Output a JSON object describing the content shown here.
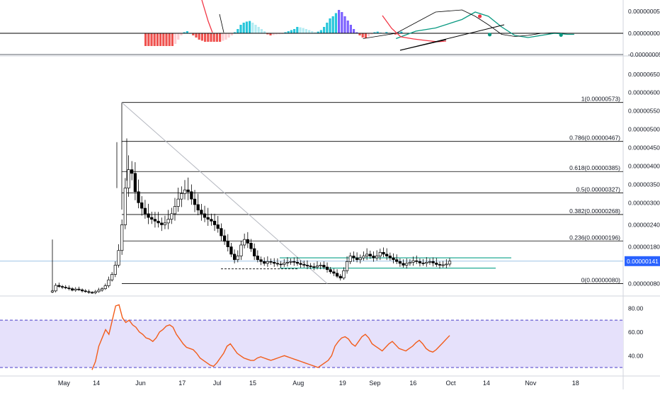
{
  "colors": {
    "bull": "#ffffff",
    "bear": "#000000",
    "fib": "#000000",
    "diagonal": "#b2b5be",
    "price_line": "#9ec4e6",
    "price_badge": "#2962ff",
    "channel": "#22ab94",
    "rsi": "#f25c1a",
    "rsi_band": "#e6e1fb",
    "rsi_dash": "#4a3dc8",
    "macd_pos_strong": "#26c6da",
    "macd_pos_weak": "#b2ebf2",
    "macd_neg_strong": "#ef5350",
    "macd_neg_weak": "#ffcdd2",
    "macd_blue": "#7b61ff",
    "signal_green": "#089981",
    "signal_red": "#f23645"
  },
  "chart_data": [
    {
      "type": "line",
      "pane": "macd",
      "ytick_labels": [
        "0.00000005",
        "0.00000000",
        "-0.00000005"
      ],
      "ylim": [
        -6e-08,
        9e-08
      ],
      "histogram": [
        -6,
        -6,
        -6,
        -6,
        -6,
        -6,
        -6,
        -6,
        -6,
        -6,
        -5,
        -3,
        -1,
        0.5,
        1,
        0,
        -1,
        -2,
        -3,
        -3.5,
        -4,
        -4,
        -4,
        -4,
        -4,
        -4,
        -3.5,
        -3,
        -2,
        -1,
        0.5,
        2,
        4,
        5,
        5.5,
        5.8,
        5,
        4,
        3,
        2,
        1,
        -0.5,
        -1,
        -0.8,
        -0.5,
        -0.4,
        -0.3,
        0.5,
        1,
        1.5,
        2,
        3,
        2.8,
        2.5,
        2,
        1.5,
        1,
        0.5,
        0.8,
        1.5,
        3,
        5,
        7,
        8,
        9.5,
        11,
        10,
        8,
        6,
        4,
        2,
        0.5,
        -1,
        -2,
        -2.2,
        -1.5,
        -0.5,
        0.5,
        0.8,
        0.5,
        0.2,
        0.6,
        0.3,
        -0.3,
        -0.6,
        0.4,
        0.8
      ],
      "macd_line": [
        [
          0.6,
          -2.5
        ],
        [
          0.63,
          1
        ],
        [
          0.66,
          2.5
        ],
        [
          0.7,
          6.5
        ],
        [
          0.72,
          10
        ],
        [
          0.74,
          8
        ],
        [
          0.76,
          3
        ],
        [
          0.78,
          -1
        ],
        [
          0.8,
          -2
        ],
        [
          0.82,
          -1
        ],
        [
          0.84,
          0
        ],
        [
          0.86,
          -0.5
        ],
        [
          0.87,
          -0.5
        ]
      ],
      "signal_line": [
        [
          0.55,
          -2.5
        ],
        [
          0.6,
          0
        ],
        [
          0.63,
          5
        ],
        [
          0.66,
          10
        ],
        [
          0.7,
          11
        ],
        [
          0.72,
          8
        ],
        [
          0.74,
          4
        ],
        [
          0.76,
          -0.5
        ],
        [
          0.78,
          -1.5
        ],
        [
          0.8,
          -1
        ],
        [
          0.82,
          0
        ],
        [
          0.84,
          0.2
        ],
        [
          0.86,
          0
        ]
      ],
      "markers": [
        {
          "x": 0.727,
          "y": 8,
          "color": "signal_red"
        },
        {
          "x": 0.742,
          "y": -0.6,
          "color": "signal_green"
        },
        {
          "x": 0.85,
          "y": -0.8,
          "color": "signal_green"
        }
      ]
    },
    {
      "type": "candlestick",
      "pane": "price",
      "ylim": [
        5e-07,
        6.9e-06
      ],
      "ytick_labels": [
        "0.00000650",
        "0.00000600",
        "0.00000550",
        "0.00000500",
        "0.00000450",
        "0.00000400",
        "0.00000350",
        "0.00000300",
        "0.00000240",
        "0.00000180",
        "0.00000080"
      ],
      "current_price": "0.00000141",
      "fibonacci": [
        {
          "ratio": "1",
          "value": "0.00000573",
          "label": "1(0.00000573)"
        },
        {
          "ratio": "0.786",
          "value": "0.00000467",
          "label": "0.786(0.00000467)"
        },
        {
          "ratio": "0.618",
          "value": "0.00000385",
          "label": "0.618(0.00000385)"
        },
        {
          "ratio": "0.5",
          "value": "0.00000327",
          "label": "0.5(0.00000327)"
        },
        {
          "ratio": "0.382",
          "value": "0.00000268",
          "label": "0.382(0.00000268)"
        },
        {
          "ratio": "0.236",
          "value": "0.00000196",
          "label": "0.236(0.00000196)"
        },
        {
          "ratio": "0",
          "value": "0.00000080",
          "label": "0(0.00000080)"
        }
      ],
      "closes": [
        0.6,
        0.75,
        0.72,
        0.7,
        0.68,
        0.66,
        0.62,
        0.65,
        0.63,
        0.6,
        0.58,
        0.56,
        0.55,
        0.58,
        0.62,
        0.66,
        0.74,
        0.9,
        1.05,
        1.3,
        1.7,
        2.4,
        3.4,
        3.9,
        3.8,
        3.3,
        3.0,
        2.85,
        2.7,
        2.6,
        2.55,
        2.5,
        2.45,
        2.4,
        2.45,
        2.55,
        2.7,
        2.9,
        3.1,
        3.25,
        3.35,
        3.3,
        3.1,
        2.95,
        2.8,
        2.7,
        2.6,
        2.55,
        2.5,
        2.4,
        2.3,
        2.1,
        1.95,
        1.8,
        1.6,
        1.45,
        1.55,
        1.85,
        2.0,
        1.9,
        1.75,
        1.55,
        1.45,
        1.4,
        1.35,
        1.4,
        1.38,
        1.35,
        1.33,
        1.32,
        1.36,
        1.38,
        1.4,
        1.38,
        1.35,
        1.32,
        1.3,
        1.28,
        1.26,
        1.25,
        1.28,
        1.3,
        1.25,
        1.18,
        1.12,
        1.08,
        1.0,
        0.95,
        1.15,
        1.4,
        1.55,
        1.5,
        1.45,
        1.5,
        1.55,
        1.6,
        1.55,
        1.5,
        1.55,
        1.65,
        1.6,
        1.55,
        1.5,
        1.45,
        1.4,
        1.35,
        1.3,
        1.35,
        1.38,
        1.42,
        1.4,
        1.36,
        1.35,
        1.38,
        1.4,
        1.36,
        1.32,
        1.3,
        1.31,
        1.33,
        1.41
      ]
    },
    {
      "type": "line",
      "pane": "rsi",
      "ylim": [
        24,
        88
      ],
      "ytick_labels": [
        "80.00",
        "60.00",
        "40.00"
      ],
      "bands": [
        70,
        30
      ],
      "values": [
        28,
        35,
        48,
        55,
        62,
        58,
        70,
        82,
        83,
        72,
        68,
        70,
        66,
        64,
        60,
        58,
        55,
        54,
        52,
        55,
        60,
        62,
        65,
        66,
        64,
        58,
        54,
        50,
        47,
        46,
        45,
        42,
        38,
        36,
        34,
        32,
        31,
        34,
        38,
        42,
        48,
        50,
        46,
        42,
        40,
        38,
        37,
        36,
        36,
        38,
        39,
        38,
        37,
        36,
        37,
        38,
        39,
        40,
        39,
        38,
        37,
        36,
        35,
        34,
        33,
        32,
        31,
        30,
        32,
        34,
        36,
        40,
        48,
        52,
        55,
        56,
        54,
        50,
        48,
        52,
        56,
        58,
        55,
        50,
        48,
        46,
        44,
        47,
        50,
        52,
        49,
        46,
        45,
        44,
        46,
        48,
        51,
        53,
        50,
        46,
        44,
        43,
        45,
        48,
        51,
        54,
        57
      ]
    }
  ],
  "xaxis": {
    "ticks": [
      {
        "label": "May",
        "pos": 0.097
      },
      {
        "label": "14",
        "pos": 0.146
      },
      {
        "label": "Jun",
        "pos": 0.213
      },
      {
        "label": "17",
        "pos": 0.276
      },
      {
        "label": "Jul",
        "pos": 0.329
      },
      {
        "label": "15",
        "pos": 0.383
      },
      {
        "label": "Aug",
        "pos": 0.452
      },
      {
        "label": "19",
        "pos": 0.519
      },
      {
        "label": "Sep",
        "pos": 0.568
      },
      {
        "label": "16",
        "pos": 0.626
      },
      {
        "label": "Oct",
        "pos": 0.683
      },
      {
        "label": "14",
        "pos": 0.737
      },
      {
        "label": "Nov",
        "pos": 0.804
      },
      {
        "label": "18",
        "pos": 0.872
      }
    ]
  }
}
